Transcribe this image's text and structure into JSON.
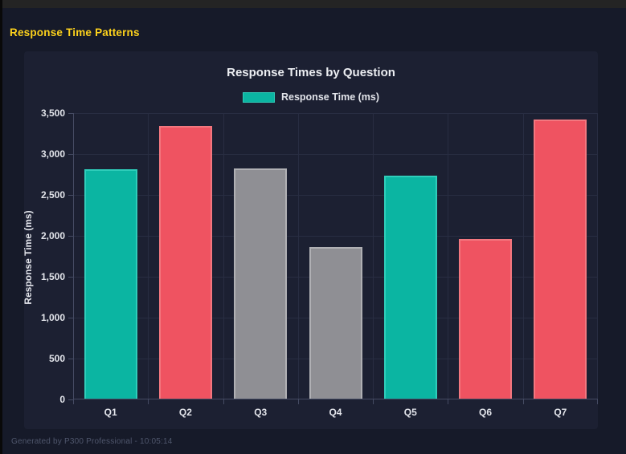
{
  "header": {
    "title": "Response Time Patterns",
    "title_color": "#fdd21c"
  },
  "footer": {
    "text": "Generated by P300 Professional - 10:05:14"
  },
  "chart_data": {
    "type": "bar",
    "title": "Response Times by Question",
    "legend": [
      {
        "label": "Response Time (ms)",
        "color_key": "teal"
      }
    ],
    "legend_position": "top",
    "categories": [
      "Q1",
      "Q2",
      "Q3",
      "Q4",
      "Q5",
      "Q6",
      "Q7"
    ],
    "values": [
      2800,
      3330,
      2810,
      1850,
      2730,
      1950,
      3410
    ],
    "bar_color_keys": [
      "teal",
      "red",
      "gray",
      "gray",
      "teal",
      "red",
      "red"
    ],
    "palette": {
      "teal": {
        "fill": "#0bb5a2",
        "border": "#2fcdba"
      },
      "red": {
        "fill": "#ef5361",
        "border": "#f3777f"
      },
      "gray": {
        "fill": "#8f8f94",
        "border": "#b0b0b4"
      }
    },
    "xlabel": "",
    "ylabel": "Response Time (ms)",
    "ylim": [
      0,
      3500
    ],
    "ytick_step": 500,
    "ytick_labels": [
      "0",
      "500",
      "1,000",
      "1,500",
      "2,000",
      "2,500",
      "3,000",
      "3,500"
    ],
    "grid": true,
    "background": "#1c2032",
    "page_background": "#161a29"
  }
}
